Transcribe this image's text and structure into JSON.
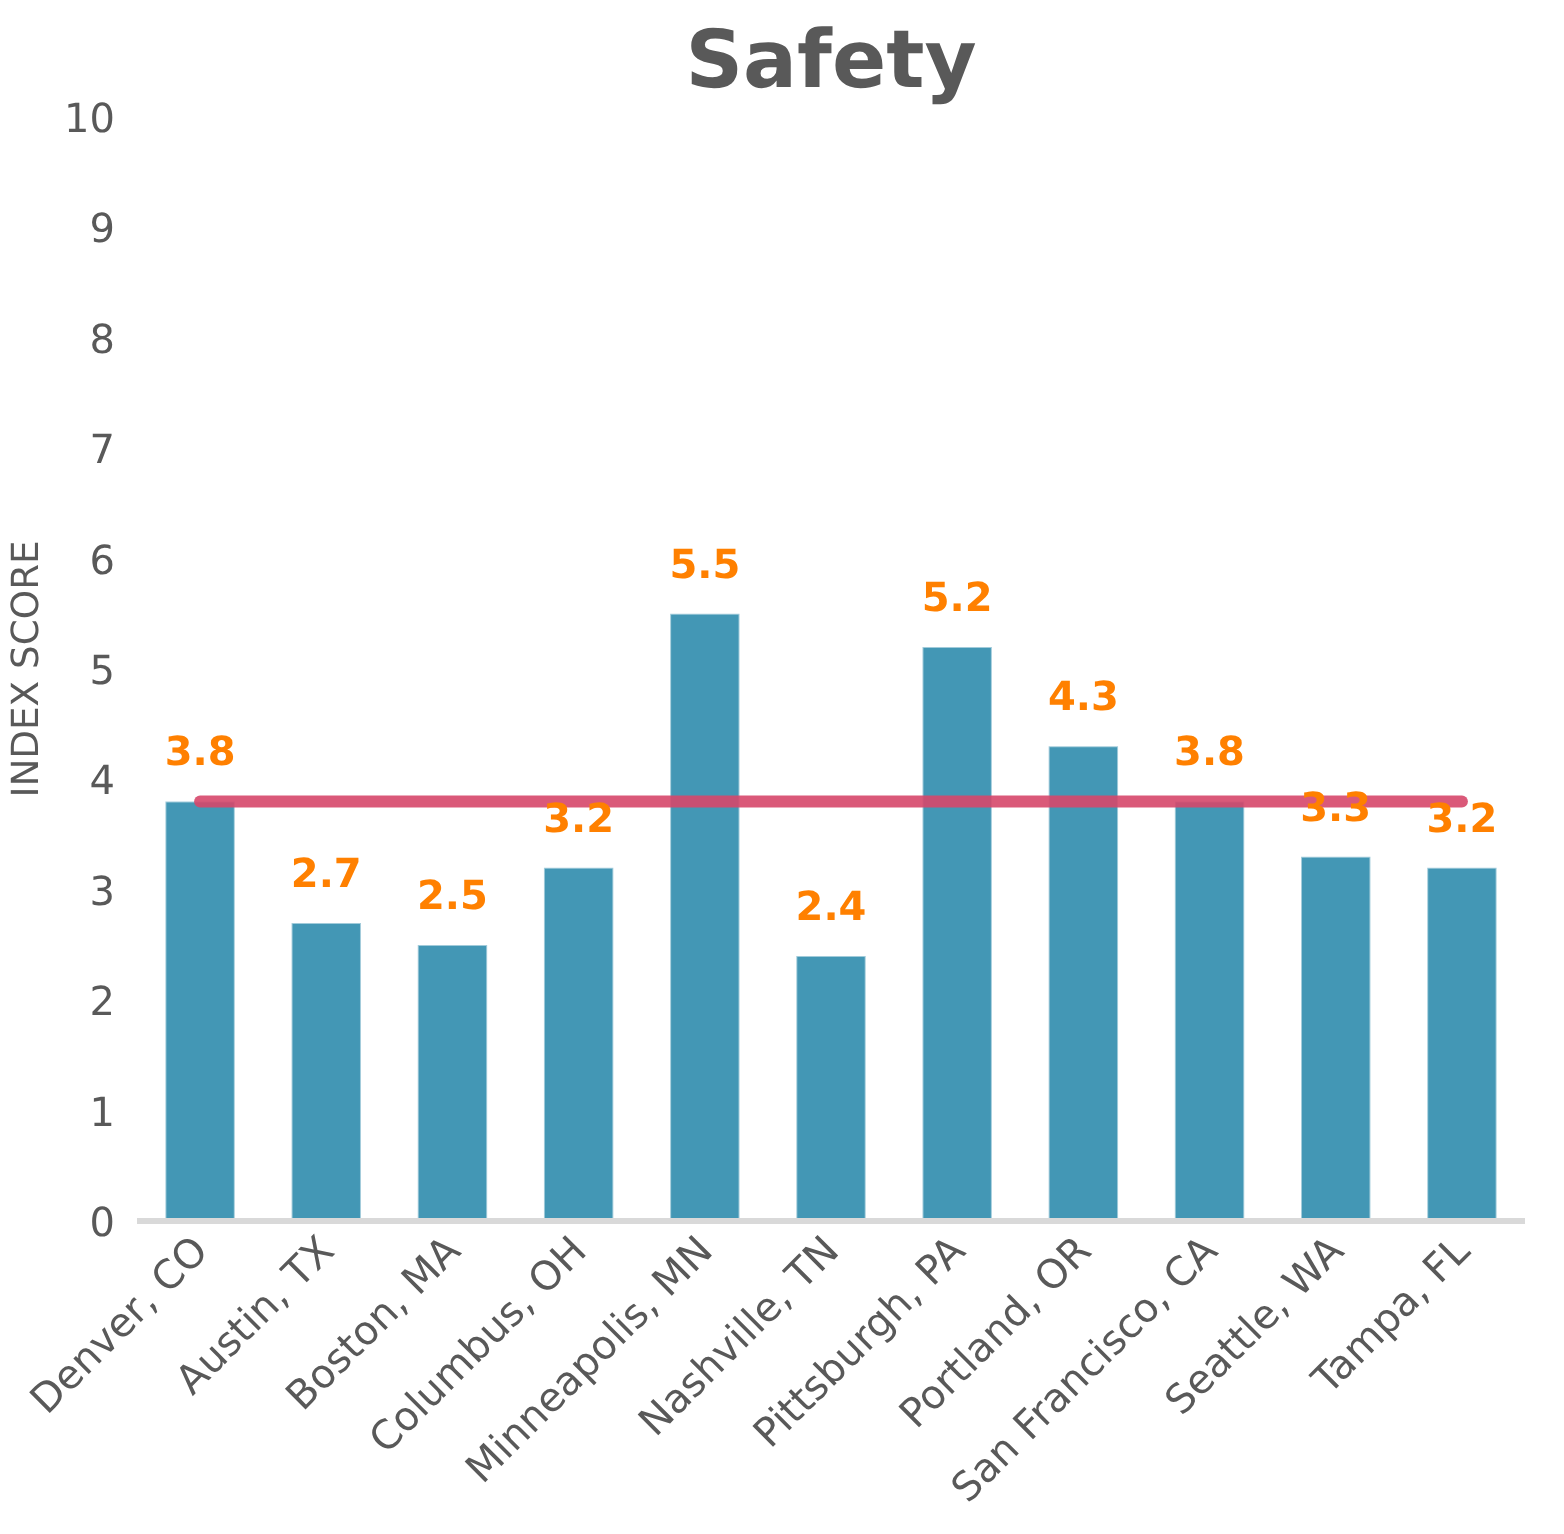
{
  "chart_data": {
    "type": "bar",
    "title": "Safety",
    "ylabel": "INDEX SCORE",
    "categories": [
      "Denver, CO",
      "Austin, TX",
      "Boston, MA",
      "Columbus, OH",
      "Minneapolis, MN",
      "Nashville, TN",
      "Pittsburgh, PA",
      "Portland, OR",
      "San Francisco, CA",
      "Seattle, WA",
      "Tampa, FL"
    ],
    "values": [
      3.8,
      2.7,
      2.5,
      3.2,
      5.5,
      2.4,
      5.2,
      4.3,
      3.8,
      3.3,
      3.2
    ],
    "color": "#4397b5",
    "ylim": [
      0,
      10
    ],
    "yticks": [
      0,
      1,
      2,
      3,
      4,
      5,
      6,
      7,
      8,
      9,
      10
    ],
    "data_labels": true,
    "grid": false,
    "ref_lines": [
      {
        "axis": "y",
        "value": 3.8,
        "label": null,
        "color": "#d6476a"
      }
    ]
  }
}
